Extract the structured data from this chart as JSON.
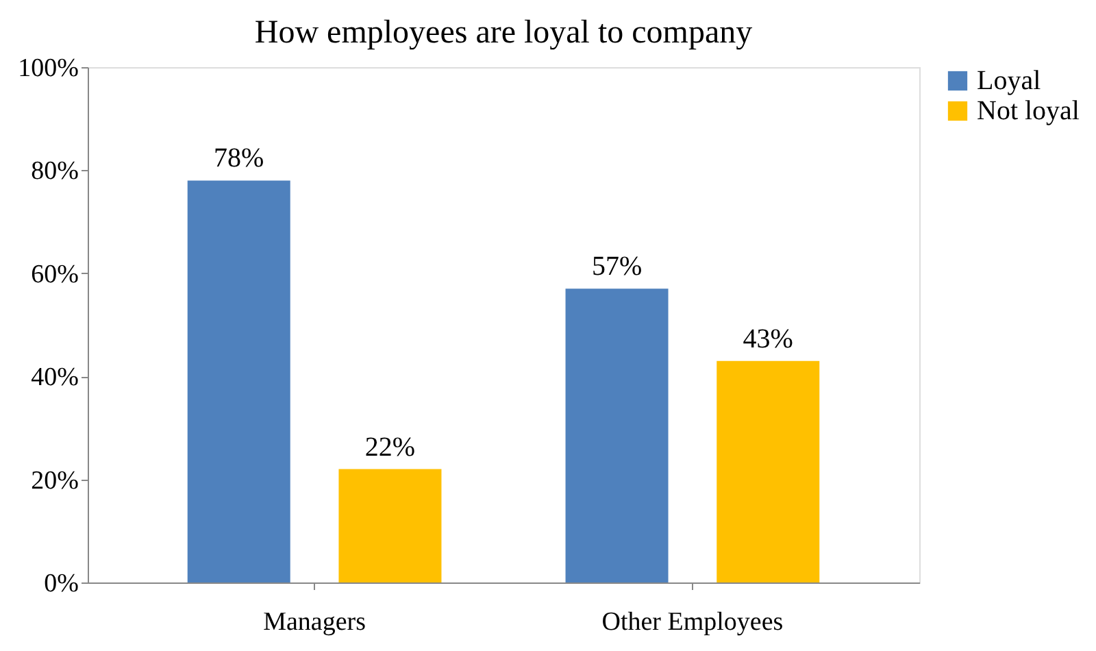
{
  "chart_data": {
    "type": "bar",
    "title": "How employees are loyal to company",
    "categories": [
      "Managers",
      "Other Employees"
    ],
    "series": [
      {
        "name": "Loyal",
        "color": "#4f81bd",
        "values": [
          78,
          57
        ],
        "value_labels": [
          "78%",
          "57%"
        ]
      },
      {
        "name": "Not loyal",
        "color": "#ffc000",
        "values": [
          22,
          43
        ],
        "value_labels": [
          "22%",
          "43%"
        ]
      }
    ],
    "ylim": [
      0,
      100
    ],
    "yticks": [
      {
        "value": 0,
        "label": "0%"
      },
      {
        "value": 20,
        "label": "20%"
      },
      {
        "value": 40,
        "label": "40%"
      },
      {
        "value": 60,
        "label": "60%"
      },
      {
        "value": 80,
        "label": "80%"
      },
      {
        "value": 100,
        "label": "100%"
      }
    ],
    "grid": false,
    "legend": "right"
  }
}
